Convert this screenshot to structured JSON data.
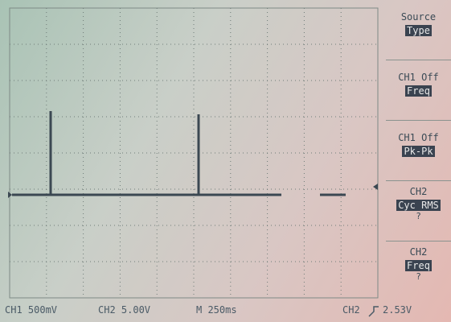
{
  "menu": [
    {
      "label": "Source",
      "value": "Type"
    },
    {
      "label": "CH1 Off",
      "value": "Freq"
    },
    {
      "label": "CH1 Off",
      "value": "Pk-Pk"
    },
    {
      "label": "CH2",
      "value": "Cyc RMS",
      "note": "?"
    },
    {
      "label": "CH2",
      "value": "Freq",
      "note": "?"
    }
  ],
  "status": {
    "ch1": "CH1 500mV",
    "ch2": "CH2 5.00V",
    "timebase": "M 250ms",
    "trigger_source": "CH2",
    "trigger_level": "2.53V"
  }
}
